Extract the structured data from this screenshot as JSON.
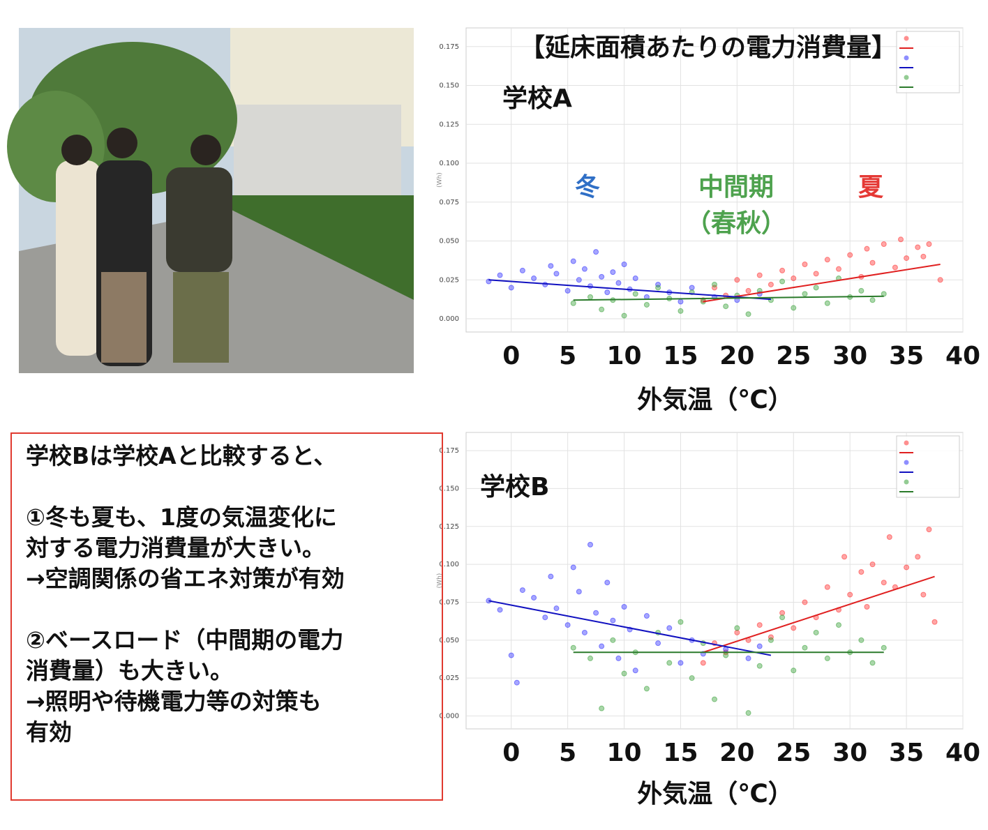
{
  "chart_data": [
    {
      "type": "scatter",
      "title": "【延床面積あたりの電力消費量】",
      "subtitle": "学校A",
      "x_label": "外気温（℃）",
      "y_label": "(Wh)",
      "xlim": [
        -4,
        40
      ],
      "ylim": [
        -0.0085,
        0.187
      ],
      "xticks": [
        0,
        5,
        10,
        15,
        20,
        25,
        30,
        35,
        40
      ],
      "yticks": [
        {
          "value": 0,
          "label": "0.000"
        },
        0.025,
        {
          "value": 0.05,
          "label": "0.050"
        },
        0.075,
        {
          "value": 0.1,
          "label": "0.100"
        },
        0.125,
        {
          "value": 0.15,
          "label": "0.150"
        },
        0.175
      ],
      "grid": true,
      "annotations": [
        {
          "text": "冬",
          "color": "#2f6fc6"
        },
        {
          "text": "中間期",
          "color": "#4ea24e"
        },
        {
          "text": "（春秋）",
          "color": "#4ea24e"
        },
        {
          "text": "夏",
          "color": "#e53935"
        }
      ],
      "series": [
        {
          "color": "#ff2020",
          "x": [
            17,
            18,
            19,
            20,
            21,
            22,
            23,
            24,
            25,
            26,
            27,
            28,
            29,
            30,
            31,
            31.5,
            32,
            33,
            34,
            34.5,
            35,
            36,
            36.5,
            37,
            38
          ],
          "values": [
            0.012,
            0.02,
            0.015,
            0.025,
            0.018,
            0.028,
            0.022,
            0.031,
            0.026,
            0.035,
            0.029,
            0.038,
            0.032,
            0.041,
            0.027,
            0.045,
            0.036,
            0.048,
            0.033,
            0.051,
            0.039,
            0.046,
            0.04,
            0.048,
            0.025
          ]
        },
        {
          "color": "#2020ff",
          "x": [
            -2,
            -1,
            0,
            1,
            2,
            3,
            3.5,
            4,
            5,
            5.5,
            6,
            6.5,
            7,
            7.5,
            8,
            8.5,
            9,
            9.5,
            10,
            10.5,
            11,
            12,
            13,
            14,
            15,
            16,
            18,
            20,
            22
          ],
          "values": [
            0.024,
            0.028,
            0.02,
            0.031,
            0.026,
            0.022,
            0.034,
            0.029,
            0.018,
            0.037,
            0.025,
            0.032,
            0.021,
            0.043,
            0.027,
            0.017,
            0.03,
            0.023,
            0.035,
            0.019,
            0.026,
            0.014,
            0.022,
            0.017,
            0.011,
            0.02,
            0.014,
            0.012,
            0.016
          ]
        },
        {
          "color": "#2a9a2a",
          "x": [
            5.5,
            7,
            8,
            9,
            10,
            11,
            12,
            13,
            14,
            15,
            16,
            17,
            18,
            19,
            20,
            21,
            22,
            23,
            24,
            25,
            26,
            27,
            28,
            29,
            30,
            31,
            32,
            33
          ],
          "values": [
            0.01,
            0.014,
            0.006,
            0.012,
            0.002,
            0.016,
            0.009,
            0.02,
            0.013,
            0.005,
            0.017,
            0.011,
            0.022,
            0.008,
            0.015,
            0.003,
            0.018,
            0.012,
            0.024,
            0.007,
            0.016,
            0.02,
            0.01,
            0.026,
            0.014,
            0.018,
            0.012,
            0.016
          ]
        }
      ],
      "lines": [
        {
          "color": "#e02020",
          "x": [
            17,
            38
          ],
          "values": [
            0.011,
            0.035
          ]
        },
        {
          "color": "#1010c0",
          "x": [
            -2,
            23
          ],
          "values": [
            0.025,
            0.0125
          ]
        },
        {
          "color": "#2a7a2a",
          "x": [
            5.5,
            33
          ],
          "values": [
            0.012,
            0.0145
          ]
        }
      ]
    },
    {
      "type": "scatter",
      "subtitle": "学校B",
      "x_label": "外気温（℃）",
      "y_label": "(Wh)",
      "xlim": [
        -4,
        40
      ],
      "ylim": [
        -0.0085,
        0.187
      ],
      "xticks": [
        0,
        5,
        10,
        15,
        20,
        25,
        30,
        35,
        40
      ],
      "yticks": [
        {
          "value": 0,
          "label": "0.000"
        },
        0.025,
        {
          "value": 0.05,
          "label": "0.050"
        },
        0.075,
        {
          "value": 0.1,
          "label": "0.100"
        },
        0.125,
        {
          "value": 0.15,
          "label": "0.150"
        },
        0.175
      ],
      "grid": true,
      "series": [
        {
          "color": "#ff2020",
          "x": [
            17,
            18,
            19,
            20,
            21,
            22,
            23,
            24,
            25,
            26,
            27,
            28,
            29,
            29.5,
            30,
            31,
            31.5,
            32,
            33,
            33.5,
            34,
            35,
            36,
            36.5,
            37,
            37.5
          ],
          "values": [
            0.035,
            0.048,
            0.042,
            0.055,
            0.05,
            0.06,
            0.052,
            0.068,
            0.058,
            0.075,
            0.065,
            0.085,
            0.07,
            0.105,
            0.08,
            0.095,
            0.072,
            0.1,
            0.088,
            0.118,
            0.085,
            0.098,
            0.105,
            0.08,
            0.123,
            0.062
          ]
        },
        {
          "color": "#2020ff",
          "x": [
            -2,
            -1,
            0,
            0.5,
            1,
            2,
            3,
            3.5,
            4,
            5,
            5.5,
            6,
            6.5,
            7,
            7.5,
            8,
            8.5,
            9,
            9.5,
            10,
            10.5,
            11,
            12,
            13,
            14,
            15,
            16,
            17,
            19,
            21,
            22
          ],
          "values": [
            0.076,
            0.07,
            0.04,
            0.022,
            0.083,
            0.078,
            0.065,
            0.092,
            0.071,
            0.06,
            0.098,
            0.082,
            0.055,
            0.113,
            0.068,
            0.046,
            0.088,
            0.063,
            0.038,
            0.072,
            0.057,
            0.03,
            0.066,
            0.048,
            0.058,
            0.035,
            0.05,
            0.041,
            0.044,
            0.038,
            0.046
          ]
        },
        {
          "color": "#2a9a2a",
          "x": [
            5.5,
            7,
            8,
            9,
            10,
            11,
            12,
            13,
            14,
            15,
            16,
            17,
            18,
            19,
            20,
            21,
            22,
            23,
            24,
            25,
            26,
            27,
            28,
            29,
            30,
            31,
            32,
            33
          ],
          "values": [
            0.045,
            0.038,
            0.005,
            0.05,
            0.028,
            0.042,
            0.018,
            0.055,
            0.035,
            0.062,
            0.025,
            0.048,
            0.011,
            0.04,
            0.058,
            0.002,
            0.033,
            0.05,
            0.065,
            0.03,
            0.045,
            0.055,
            0.038,
            0.06,
            0.042,
            0.05,
            0.035,
            0.045
          ]
        }
      ],
      "lines": [
        {
          "color": "#e02020",
          "x": [
            17,
            37.5
          ],
          "values": [
            0.042,
            0.092
          ]
        },
        {
          "color": "#1010c0",
          "x": [
            -2,
            23
          ],
          "values": [
            0.076,
            0.04
          ]
        },
        {
          "color": "#2a7a2a",
          "x": [
            5.5,
            33
          ],
          "values": [
            0.042,
            0.042
          ]
        }
      ]
    }
  ],
  "note": {
    "paragraphs": [
      [
        "学校Bは学校Aと比較すると、"
      ],
      [
        "①冬も夏も、1度の気温変化に",
        "対する電力消費量が大きい。",
        "→空調関係の省エネ対策が有効"
      ],
      [
        "②ベースロード（中間期の電力",
        "消費量）も大きい。",
        "→照明や待機電力等の対策も",
        "有効"
      ]
    ]
  }
}
